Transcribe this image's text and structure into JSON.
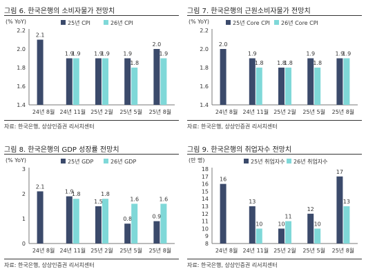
{
  "colors": {
    "series_a": "#3b4a6b",
    "series_b": "#7fd8d8"
  },
  "panels": [
    {
      "title": "그림 6. 한국은행의 소비자물가 전망치",
      "source": "자료: 한국은행, 상상인증권 리서치센터",
      "chart_data": {
        "type": "bar",
        "unit_label": "(% YoY)",
        "categories": [
          "24년 8월",
          "24년 11월",
          "25년 2월",
          "25년 5월",
          "25년 8월"
        ],
        "ylim": [
          1.4,
          2.2
        ],
        "yticks": [
          "2.2",
          "2.0",
          "1.8",
          "1.6",
          "1.4"
        ],
        "series": [
          {
            "name": "25년 CPI",
            "values": [
              2.1,
              1.9,
              1.9,
              1.9,
              2.0
            ],
            "labels": [
              "2.1",
              "1.9",
              "1.9",
              "1.9",
              "2.0"
            ]
          },
          {
            "name": "26년 CPI",
            "values": [
              null,
              1.9,
              1.9,
              1.8,
              1.9
            ],
            "labels": [
              "",
              "1.9",
              "1.9",
              "1.8",
              "1.9"
            ]
          }
        ]
      }
    },
    {
      "title": "그림 7. 한국은행의 근원소비자물가 전망치",
      "source": "자료: 한국은행, 상상인증권 리서치센터",
      "chart_data": {
        "type": "bar",
        "unit_label": "(% YoY)",
        "categories": [
          "24년 8월",
          "24년 11월",
          "25년 2월",
          "25년 5월",
          "25년 8월"
        ],
        "ylim": [
          1.4,
          2.2
        ],
        "yticks": [
          "2.2",
          "2.0",
          "1.8",
          "1.6",
          "1.4"
        ],
        "series": [
          {
            "name": "25년 Core CPI",
            "values": [
              2.0,
              1.9,
              1.8,
              1.9,
              1.9
            ],
            "labels": [
              "2.0",
              "1.9",
              "1.8",
              "1.9",
              "1.9"
            ]
          },
          {
            "name": "26년 Core CPI",
            "values": [
              null,
              1.8,
              1.8,
              1.8,
              1.9
            ],
            "labels": [
              "",
              "1.8",
              "1.8",
              "1.8",
              "1.9"
            ]
          }
        ]
      }
    },
    {
      "title": "그림 8. 한국은행의 GDP 성장률 전망치",
      "source": "자료: 한국은행, 상상인증권 리서치센터",
      "chart_data": {
        "type": "bar",
        "unit_label": "(% YoY)",
        "categories": [
          "24년 8월",
          "24년 11월",
          "25년 2월",
          "25년 5월",
          "25년 8월"
        ],
        "ylim": [
          0,
          3
        ],
        "yticks": [
          "3",
          "2",
          "1",
          "0"
        ],
        "series": [
          {
            "name": "25년 GDP",
            "values": [
              2.1,
              1.9,
              1.5,
              0.8,
              0.9
            ],
            "labels": [
              "2.1",
              "1.9",
              "1.5",
              "0.8",
              "0.9"
            ]
          },
          {
            "name": "26년 GDP",
            "values": [
              null,
              1.8,
              1.8,
              1.6,
              1.6
            ],
            "labels": [
              "",
              "1.8",
              "1.8",
              "1.6",
              "1.6"
            ]
          }
        ]
      }
    },
    {
      "title": "그림 9. 한국은행의 취업자수 전망치",
      "source": "자료: 한국은행, 상상인증권 리서치센터",
      "chart_data": {
        "type": "bar",
        "unit_label": "(만 명)",
        "categories": [
          "24년 8월",
          "24년 11월",
          "25년 2월",
          "25년 5월",
          "25년 8월"
        ],
        "ylim": [
          8,
          18
        ],
        "yticks": [
          "18",
          "17",
          "16",
          "15",
          "14",
          "13",
          "12",
          "11",
          "10",
          "9",
          "8"
        ],
        "series": [
          {
            "name": "25년 취업자수",
            "values": [
              16,
              13,
              10,
              12,
              17
            ],
            "labels": [
              "16",
              "13",
              "10",
              "12",
              "17"
            ]
          },
          {
            "name": "26년 취업자수",
            "values": [
              null,
              10,
              11,
              10,
              13
            ],
            "labels": [
              "",
              "10",
              "11",
              "10",
              "13"
            ]
          }
        ]
      }
    }
  ]
}
